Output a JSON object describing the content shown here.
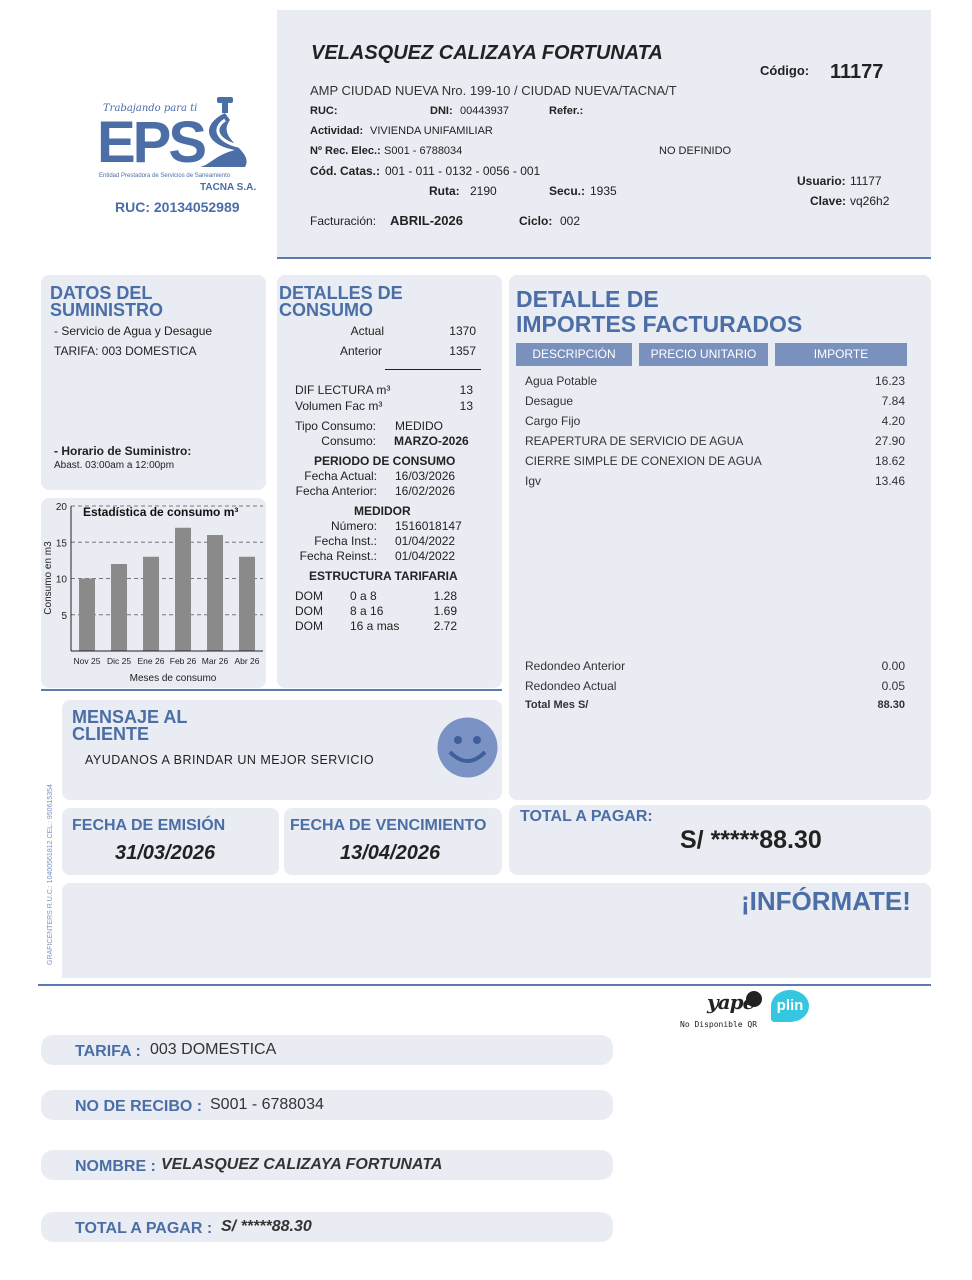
{
  "logo": {
    "tagline": "Trabajando para ti",
    "name": "EPS",
    "entity": "Entidad Prestadora de Servicios de Saneamiento",
    "company": "TACNA S.A.",
    "ruc": "RUC: 20134052989",
    "brand_color": "#4b6ea6"
  },
  "header": {
    "client_name": "VELASQUEZ CALIZAYA FORTUNATA",
    "codigo_label": "Código:",
    "codigo": "11177",
    "address": "AMP CIUDAD NUEVA Nro. 199-10 / CIUDAD NUEVA/TACNA/T",
    "ruc_label": "RUC:",
    "dni_label": "DNI:",
    "dni": "00443937",
    "refer_label": "Refer.:",
    "actividad_label": "Actividad:",
    "actividad": "VIVIENDA UNIFAMILIAR",
    "rec_elec_label": "Nº Rec. Elec.:",
    "rec_elec": "S001 - 6788034",
    "no_definido": "NO DEFINIDO",
    "catas_label": "Cód. Catas.:",
    "catas": "001 - 011 - 0132 - 0056 - 001",
    "ruta_label": "Ruta:",
    "ruta": "2190",
    "secu_label": "Secu.:",
    "secu": "1935",
    "usuario_label": "Usuario:",
    "usuario": "11177",
    "clave_label": "Clave:",
    "clave": "vq26h2",
    "facturacion_label": "Facturación:",
    "facturacion": "ABRIL-2026",
    "ciclo_label": "Ciclo:",
    "ciclo": "002"
  },
  "suministro": {
    "title1": "DATOS DEL",
    "title2": "SUMINISTRO",
    "servicio": "- Servicio de Agua y Desague",
    "tarifa": "TARIFA: 003 DOMESTICA",
    "horario_label": "- Horario de Suministro:",
    "horario": "Abast. 03:00am a 12:00pm"
  },
  "chart_data": {
    "type": "bar",
    "title": "Estadística de consumo m³",
    "xlabel": "Meses de consumo",
    "ylabel": "Consumo en m3",
    "categories": [
      "Nov 25",
      "Dic 25",
      "Ene 26",
      "Feb 26",
      "Mar 26",
      "Abr 26"
    ],
    "values": [
      10,
      12,
      13,
      17,
      16,
      13
    ],
    "ylim": [
      0,
      20
    ],
    "yticks": [
      5,
      10,
      15,
      20
    ],
    "grid": true,
    "bar_color": "#8a8a8a"
  },
  "consumo": {
    "title1": "DETALLES DE",
    "title2": "CONSUMO",
    "actual_label": "Actual",
    "actual": "1370",
    "anterior_label": "Anterior",
    "anterior": "1357",
    "dif_label": "DIF LECTURA m³",
    "dif": "13",
    "vol_label": "Volumen Fac m³",
    "vol": "13",
    "tipo_label": "Tipo Consumo:",
    "tipo": "MEDIDO",
    "consumo_label": "Consumo:",
    "consumo": "MARZO-2026",
    "periodo_title": "PERIODO DE CONSUMO",
    "fecha_actual_label": "Fecha Actual:",
    "fecha_actual": "16/03/2026",
    "fecha_anterior_label": "Fecha Anterior:",
    "fecha_anterior": "16/02/2026",
    "medidor_title": "MEDIDOR",
    "numero_label": "Número:",
    "numero": "1516018147",
    "inst_label": "Fecha Inst.:",
    "inst": "01/04/2022",
    "reinst_label": "Fecha Reinst.:",
    "reinst": "01/04/2022",
    "estructura_title": "ESTRUCTURA TARIFARIA",
    "tarifas": [
      {
        "tipo": "DOM",
        "rango": "0 a 8",
        "precio": "1.28"
      },
      {
        "tipo": "DOM",
        "rango": "8 a 16",
        "precio": "1.69"
      },
      {
        "tipo": "DOM",
        "rango": "16 a mas",
        "precio": "2.72"
      }
    ]
  },
  "importes": {
    "title1": "DETALLE DE",
    "title2": "IMPORTES FACTURADOS",
    "columns": [
      "DESCRIPCIÓN",
      "PRECIO UNITARIO",
      "IMPORTE"
    ],
    "rows": [
      {
        "desc": "Agua Potable",
        "importe": "16.23"
      },
      {
        "desc": "Desague",
        "importe": "7.84"
      },
      {
        "desc": "Cargo Fijo",
        "importe": "4.20"
      },
      {
        "desc": "REAPERTURA DE SERVICIO DE AGUA",
        "importe": "27.90"
      },
      {
        "desc": "CIERRE SIMPLE DE CONEXION DE AGUA",
        "importe": "18.62"
      },
      {
        "desc": "Igv",
        "importe": "13.46"
      }
    ],
    "redondeo_anterior_label": "Redondeo Anterior",
    "redondeo_anterior": "0.00",
    "redondeo_actual_label": "Redondeo Actual",
    "redondeo_actual": "0.05",
    "total_mes_label": "Total Mes S/",
    "total_mes": "88.30"
  },
  "mensaje": {
    "title1": "MENSAJE AL",
    "title2": "CLIENTE",
    "text": "AYUDANOS A BRINDAR UN MEJOR SERVICIO"
  },
  "fechas": {
    "emision_label": "FECHA DE EMISIÓN",
    "emision": "31/03/2026",
    "vencimiento_label": "FECHA DE VENCIMIENTO",
    "vencimiento": "13/04/2026"
  },
  "total": {
    "label": "TOTAL A PAGAR:",
    "value": "S/ *****88.30"
  },
  "informate": "¡INFÓRMATE!",
  "printer": "GRAFICENTERS R.U.C.: 10400561812 CEL.: 950615354",
  "payments": {
    "yape": "yape",
    "plin": "plin",
    "qr_note": "No Disponible QR"
  },
  "footer": {
    "tarifa_label": "TARIFA :",
    "tarifa": "003 DOMESTICA",
    "recibo_label": "NO DE RECIBO :",
    "recibo": "S001 - 6788034",
    "nombre_label": "NOMBRE :",
    "nombre": "VELASQUEZ CALIZAYA FORTUNATA",
    "total_label": "TOTAL A PAGAR :",
    "total": "S/ *****88.30"
  }
}
